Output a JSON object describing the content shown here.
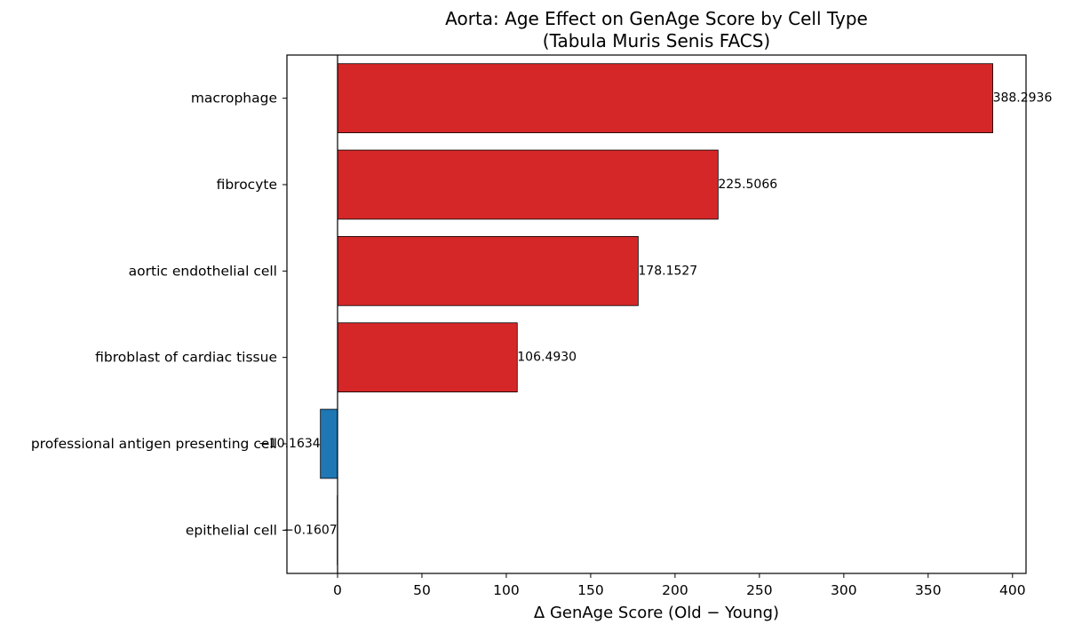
{
  "chart_data": {
    "type": "bar",
    "orientation": "horizontal",
    "title": "Aorta: Age Effect on GenAge Score by Cell Type",
    "subtitle": "(Tabula Muris Senis FACS)",
    "xlabel": "Δ GenAge Score (Old − Young)",
    "ylabel": "",
    "xlim": [
      -30,
      408
    ],
    "xticks": [
      0,
      50,
      100,
      150,
      200,
      250,
      300,
      350,
      400
    ],
    "grid": false,
    "legend": "none",
    "categories": [
      "macrophage",
      "fibrocyte",
      "aortic endothelial cell",
      "fibroblast of cardiac tissue",
      "professional antigen presenting cell",
      "epithelial cell"
    ],
    "values": [
      388.2936,
      225.5066,
      178.1527,
      106.493,
      -10.1634,
      -0.1607
    ],
    "labels": [
      "388.2936",
      "225.5066",
      "178.1527",
      "106.4930",
      "−10.1634",
      "−0.1607"
    ],
    "colors": {
      "positive": "#d62728",
      "negative": "#1f77b4",
      "edge": "#000000"
    }
  }
}
